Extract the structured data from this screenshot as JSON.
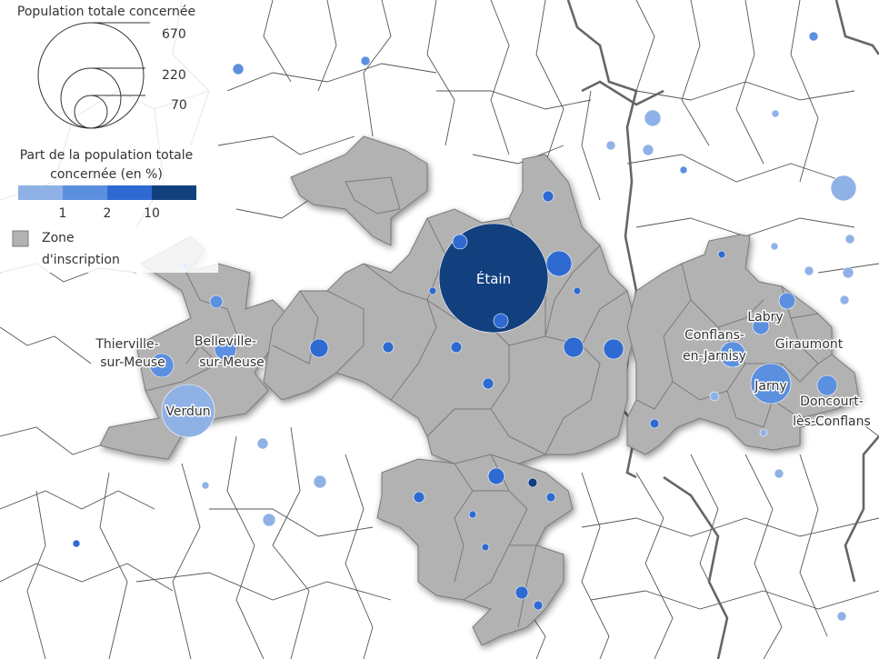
{
  "legend": {
    "size_title": "Population totale concernée",
    "size_values": [
      "670",
      "220",
      "70"
    ],
    "color_title_line1": "Part de la population totale",
    "color_title_line2": "concernée (en %)",
    "color_breaks": [
      "1",
      "2",
      "10"
    ],
    "color_ramp": [
      "#8fb2e6",
      "#5b8fdf",
      "#2f6ad2",
      "#12407f"
    ],
    "zone_label_line1": "Zone",
    "zone_label_line2": "d'inscription",
    "zone_color": "#b2b2b2"
  },
  "labels": {
    "etain": "Étain",
    "verdun": "Verdun",
    "thierville_1": "Thierville-",
    "thierville_2": "sur-Meuse",
    "belleville_1": "Belleville-",
    "belleville_2": "sur-Meuse",
    "conflans_1": "Conflans-",
    "conflans_2": "en-Jarnisy",
    "labry": "Labry",
    "giraumont": "Giraumont",
    "jarny": "Jarny",
    "doncourt_1": "Doncourt-",
    "doncourt_2": "lès-Conflans"
  }
}
